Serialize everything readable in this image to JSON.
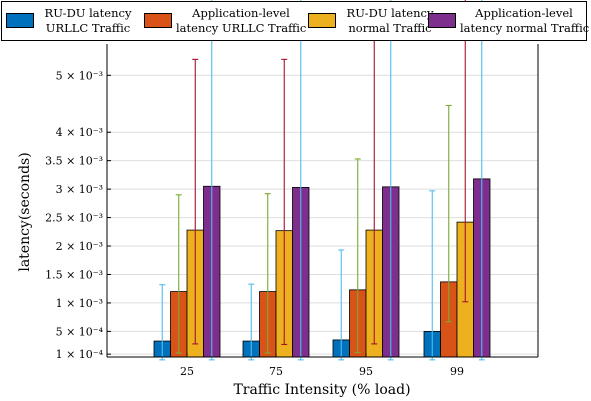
{
  "chart_data": {
    "type": "bar",
    "xlabel": "Traffic Intensity (% load)",
    "ylabel": "latency(seconds)",
    "categories": [
      "25",
      "75",
      "95",
      "99"
    ],
    "ylim": [
      5e-05,
      0.00555
    ],
    "yticks": [
      {
        "value": 0.0001,
        "label": "1 × 10⁻⁴"
      },
      {
        "value": 0.0005,
        "label": "5 × 10⁻⁴"
      },
      {
        "value": 0.001,
        "label": "1 × 10⁻³"
      },
      {
        "value": 0.0015,
        "label": "1.5 × 10⁻³"
      },
      {
        "value": 0.002,
        "label": "2 × 10⁻³"
      },
      {
        "value": 0.0025,
        "label": "2.5 × 10⁻³"
      },
      {
        "value": 0.003,
        "label": "3 × 10⁻³"
      },
      {
        "value": 0.0035,
        "label": "3.5 × 10⁻³"
      },
      {
        "value": 0.004,
        "label": "4 × 10⁻³"
      },
      {
        "value": 0.005,
        "label": "5 × 10⁻³"
      }
    ],
    "grid": true,
    "legend_position": "top",
    "series": [
      {
        "name": "RU-DU latency URLLC Traffic",
        "legend_lines": [
          "RU-DU latency",
          "URLLC Traffic"
        ],
        "color": "#0072BD",
        "errcolor": "#4DBEEE",
        "values": [
          0.00033,
          0.00033,
          0.00035,
          0.0005
        ],
        "err_low": [
          0.00033,
          0.00033,
          0.00035,
          0.0005
        ],
        "err_high": [
          0.00099,
          0.001,
          0.00158,
          0.00247
        ]
      },
      {
        "name": "Application-level latency URLLC Traffic",
        "legend_lines": [
          "Application-level",
          "latency URLLC Traffic"
        ],
        "color": "#D95319",
        "errcolor": "#77AC30",
        "values": [
          0.0012,
          0.0012,
          0.00123,
          0.00137
        ],
        "err_low": [
          0.00108,
          0.00108,
          0.0011,
          0.0007
        ],
        "err_high": [
          0.0017,
          0.00172,
          0.0023,
          0.0031
        ]
      },
      {
        "name": "RU-DU latency normal Traffic",
        "legend_lines": [
          "RU-DU latency",
          "normal Traffic"
        ],
        "color": "#EDB120",
        "errcolor": "#A2142F",
        "values": [
          0.00228,
          0.00227,
          0.00228,
          0.00242
        ],
        "err_low": [
          0.002,
          0.002,
          0.002,
          0.0014
        ],
        "err_high": [
          0.003,
          0.00301,
          0.00368,
          0.00444
        ]
      },
      {
        "name": "Application-level latency normal Traffic",
        "legend_lines": [
          "Application-level",
          "latency normal Traffic"
        ],
        "color": "#7E2F8E",
        "errcolor": "#4DBEEE",
        "values": [
          0.00305,
          0.00303,
          0.00304,
          0.00318
        ],
        "err_low": [
          0.00305,
          0.00303,
          0.00304,
          0.00318
        ],
        "err_high": [
          0.00375,
          0.00377,
          0.0044,
          0.00515
        ]
      }
    ]
  }
}
